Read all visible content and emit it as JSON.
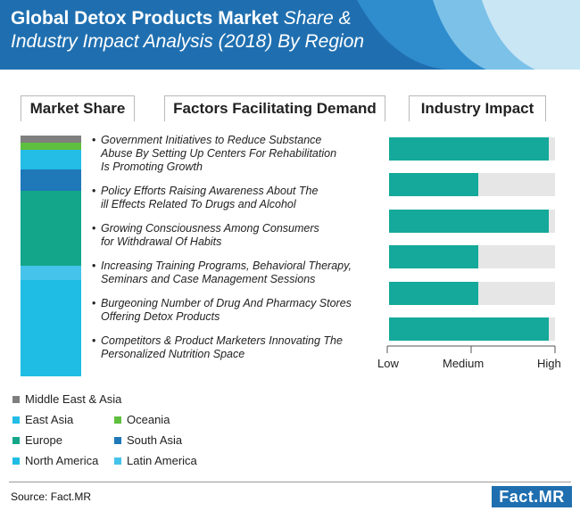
{
  "header": {
    "title_bold": "Global Detox Products Market",
    "title_italic": " Share & Industry Impact Analysis (2018) By Region",
    "colors": {
      "bg": "#1f6fb0",
      "deco1": "#2f8ccd",
      "deco2": "#7cc1e8",
      "deco3": "#c9e6f5"
    }
  },
  "sections": {
    "market_share": "Market Share",
    "factors": "Factors Facilitating Demand",
    "impact": "Industry Impact"
  },
  "chart_data": [
    {
      "type": "bar",
      "stacked": true,
      "series": [
        {
          "name": "Middle East & Asia",
          "value": 3,
          "color": "#7f7f7f"
        },
        {
          "name": "Oceania",
          "value": 3,
          "color": "#5fbf3f"
        },
        {
          "name": "East Asia",
          "value": 8,
          "color": "#23bde6"
        },
        {
          "name": "South Asia",
          "value": 9,
          "color": "#1f78b8"
        },
        {
          "name": "Europe",
          "value": 31,
          "color": "#13a68a"
        },
        {
          "name": "Latin America",
          "value": 6,
          "color": "#45c3ea"
        },
        {
          "name": "North America",
          "value": 40,
          "color": "#1fbde4"
        }
      ]
    },
    {
      "type": "bar",
      "orientation": "horizontal",
      "categories": [
        "Government Initiatives to Reduce Substance Abuse By Setting Up Centers For Rehabilitation Is Promoting Growth",
        "Policy Efforts Raising Awareness About The ill Effects Related To Drugs and Alcohol",
        "Growing Consciousness Among Consumers for Withdrawal Of Habits",
        "Increasing Training Programs, Behavioral Therapy, Seminars and Case Management Sessions",
        "Burgeoning Number of Drug And Pharmacy Stores Offering Detox Products",
        "Competitors & Product Marketers Innovating The Personalized Nutrition Space"
      ],
      "values": [
        0.96,
        0.54,
        0.96,
        0.54,
        0.54,
        0.96
      ],
      "xlim": [
        0,
        1
      ],
      "tick_labels": [
        "Low",
        "Medium",
        "High"
      ],
      "fill_color": "#14a99a",
      "track_color": "#e6e6e6"
    }
  ],
  "factors": [
    "Government Initiatives to Reduce Substance\n  Abuse By Setting Up Centers For Rehabilitation\n  Is Promoting Growth",
    "Policy Efforts Raising Awareness About The\nill Effects Related To Drugs and Alcohol",
    "Growing Consciousness Among Consumers\nfor Withdrawal Of Habits",
    "Increasing Training Programs, Behavioral Therapy,\nSeminars and Case Management Sessions",
    "Burgeoning Number of Drug And Pharmacy Stores\nOffering Detox Products",
    "Competitors & Product Marketers Innovating The\nPersonalized Nutrition Space"
  ],
  "legend": [
    {
      "label": "Middle East & Asia",
      "color": "#7f7f7f"
    },
    {
      "label": "East Asia",
      "color": "#23bde6"
    },
    {
      "label": "Oceania",
      "color": "#5fbf3f"
    },
    {
      "label": "Europe",
      "color": "#13a68a"
    },
    {
      "label": "South Asia",
      "color": "#1f78b8"
    },
    {
      "label": "North America",
      "color": "#1fbde4"
    },
    {
      "label": "Latin America",
      "color": "#45c3ea"
    }
  ],
  "footer": {
    "source": "Source: Fact.MR",
    "logo": "Fact.MR"
  }
}
